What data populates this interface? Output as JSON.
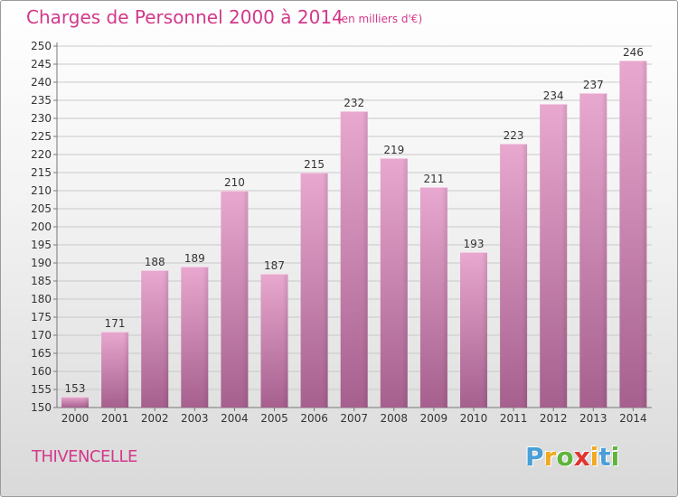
{
  "header": {
    "title": "Charges de Personnel 2000 à 2014",
    "subtitle": "(en milliers d'€)"
  },
  "footer": {
    "commune": "THIVENCELLE",
    "logo_text": "Proxiti",
    "logo_letters": [
      "P",
      "r",
      "o",
      "x",
      "i",
      "t",
      "i"
    ],
    "logo_colors": [
      "#4a9fd8",
      "#f2a81f",
      "#5fb53b",
      "#e0342e",
      "#f2a81f",
      "#4a9fd8",
      "#5fb53b"
    ]
  },
  "colors": {
    "accent": "#d2398a",
    "bar_top": "#e8a8cf",
    "bar_bottom": "#a6608e"
  },
  "chart_data": {
    "type": "bar",
    "categories": [
      "2000",
      "2001",
      "2002",
      "2003",
      "2004",
      "2005",
      "2006",
      "2007",
      "2008",
      "2009",
      "2010",
      "2011",
      "2012",
      "2013",
      "2014"
    ],
    "values": [
      153,
      171,
      188,
      189,
      210,
      187,
      215,
      232,
      219,
      211,
      193,
      223,
      234,
      237,
      246
    ],
    "ylim": [
      150,
      250
    ],
    "yticks": [
      150,
      155,
      160,
      165,
      170,
      175,
      180,
      185,
      190,
      195,
      200,
      205,
      210,
      215,
      220,
      225,
      230,
      235,
      240,
      245,
      250
    ],
    "grid": true,
    "data_labels": true
  }
}
